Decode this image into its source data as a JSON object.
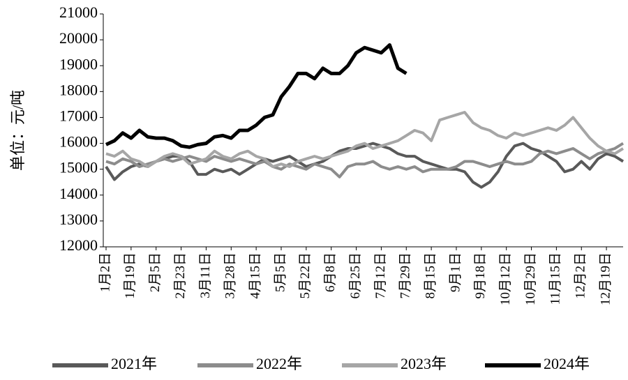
{
  "chart_data": {
    "type": "line",
    "y_label": "单位：元/吨",
    "categories": [
      "1月2日",
      null,
      null,
      "1月19日",
      null,
      null,
      "2月5日",
      null,
      null,
      "2月23日",
      null,
      null,
      "3月11日",
      null,
      null,
      "3月28日",
      null,
      null,
      "4月15日",
      null,
      null,
      "5月5日",
      null,
      null,
      "5月22日",
      null,
      null,
      "6月8日",
      null,
      null,
      "6月25日",
      null,
      null,
      "7月12日",
      null,
      null,
      "7月29日",
      null,
      null,
      "8月15日",
      null,
      null,
      "9月1日",
      null,
      null,
      "9月18日",
      null,
      null,
      "10月12日",
      null,
      null,
      "10月29日",
      null,
      null,
      "11月15日",
      null,
      null,
      "12月2日",
      null,
      null,
      "12月19日",
      null,
      null
    ],
    "series": [
      {
        "name": "2021年",
        "color": "#595959",
        "values": [
          15100,
          14600,
          14900,
          15100,
          15200,
          15100,
          15300,
          15400,
          15500,
          15500,
          15300,
          14800,
          14800,
          15000,
          14900,
          15000,
          14800,
          15000,
          15200,
          15400,
          15300,
          15400,
          15500,
          15300,
          15100,
          15200,
          15300,
          15500,
          15700,
          15800,
          15800,
          15900,
          16000,
          15900,
          15800,
          15600,
          15500,
          15500,
          15300,
          15200,
          15100,
          15000,
          15000,
          14900,
          14500,
          14300,
          14500,
          14900,
          15500,
          15900,
          16000,
          15800,
          15700,
          15500,
          15300,
          14900,
          15000,
          15300,
          15000,
          15400,
          15600,
          15500,
          15300
        ]
      },
      {
        "name": "2022年",
        "color": "#8c8c8c",
        "values": [
          15300,
          15200,
          15400,
          15300,
          15100,
          15200,
          15300,
          15400,
          15300,
          15400,
          15500,
          15400,
          15300,
          15500,
          15400,
          15300,
          15400,
          15300,
          15200,
          15300,
          15100,
          15000,
          15200,
          15100,
          15000,
          15200,
          15100,
          15000,
          14700,
          15100,
          15200,
          15200,
          15300,
          15100,
          15000,
          15100,
          15000,
          15100,
          14900,
          15000,
          15000,
          15000,
          15100,
          15300,
          15300,
          15200,
          15100,
          15200,
          15300,
          15200,
          15200,
          15300,
          15600,
          15700,
          15600,
          15700,
          15800,
          15600,
          15400,
          15600,
          15700,
          15800,
          16000
        ]
      },
      {
        "name": "2023年",
        "color": "#a6a6a6",
        "values": [
          15600,
          15500,
          15700,
          15400,
          15300,
          15100,
          15300,
          15500,
          15600,
          15500,
          15200,
          15300,
          15400,
          15700,
          15500,
          15400,
          15600,
          15700,
          15500,
          15400,
          15100,
          15200,
          15100,
          15300,
          15400,
          15500,
          15400,
          15500,
          15600,
          15700,
          15900,
          16000,
          15800,
          15900,
          16000,
          16100,
          16300,
          16500,
          16400,
          16100,
          16900,
          17000,
          17100,
          17200,
          16800,
          16600,
          16500,
          16300,
          16200,
          16400,
          16300,
          16400,
          16500,
          16600,
          16500,
          16700,
          17000,
          16600,
          16200,
          15900,
          15700,
          15600,
          15800
        ]
      },
      {
        "name": "2024年",
        "color": "#000000",
        "values": [
          15950,
          16100,
          16400,
          16200,
          16500,
          16250,
          16200,
          16200,
          16100,
          15900,
          15850,
          15950,
          16000,
          16250,
          16300,
          16200,
          16500,
          16500,
          16700,
          17000,
          17100,
          17800,
          18200,
          18700,
          18700,
          18500,
          18900,
          18700,
          18700,
          19000,
          19500,
          19700,
          19600,
          19500,
          19800,
          18900,
          18700,
          null,
          null,
          null,
          null,
          null,
          null,
          null,
          null,
          null,
          null,
          null,
          null,
          null,
          null,
          null,
          null,
          null,
          null,
          null,
          null,
          null,
          null,
          null,
          null,
          null,
          null
        ]
      }
    ],
    "ylim": [
      12000,
      21000
    ],
    "yticks": [
      12000,
      13000,
      14000,
      15000,
      16000,
      17000,
      18000,
      19000,
      20000,
      21000
    ],
    "grid": false,
    "legend": "bottom"
  }
}
